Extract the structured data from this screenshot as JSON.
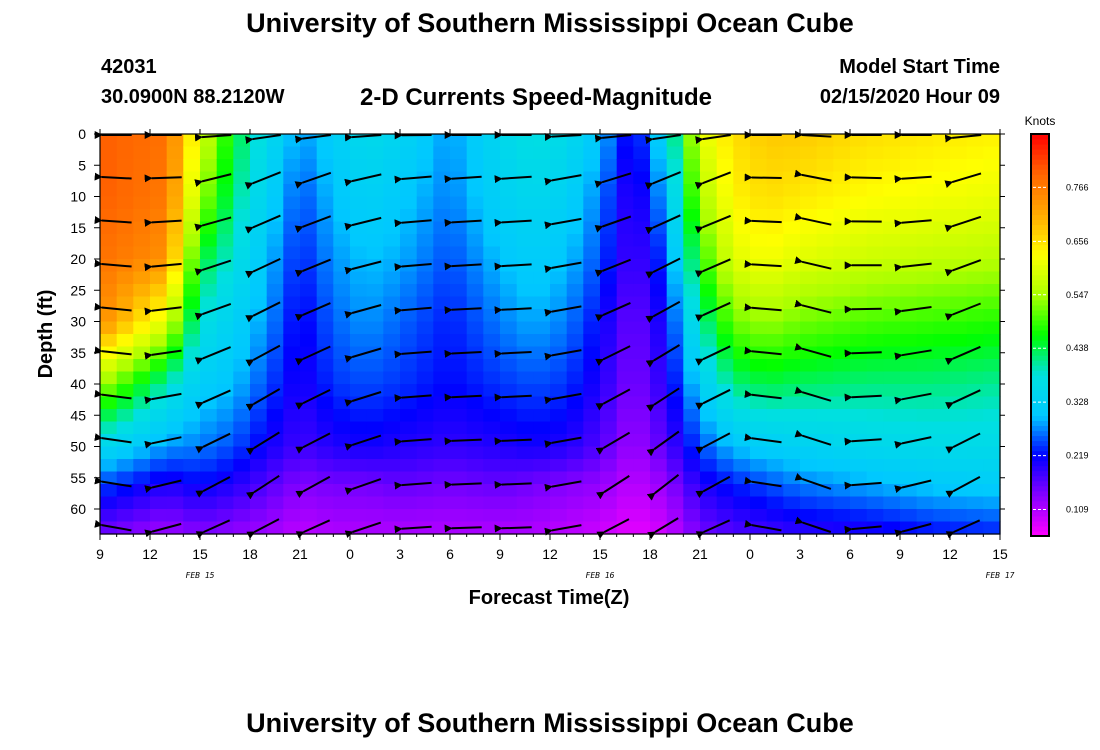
{
  "header": {
    "title": "University of Southern Mississippi Ocean Cube",
    "station_id": "42031",
    "location": "30.0900N 88.2120W",
    "plot_title": "2-D Currents Speed-Magnitude",
    "model_start_label": "Model Start Time",
    "model_start_time": "02/15/2020 Hour 09"
  },
  "footer": {
    "title": "University of Southern Mississippi Ocean Cube"
  },
  "chart_data": {
    "type": "heatmap",
    "title": "2-D Currents Speed-Magnitude",
    "xlabel": "Forecast Time(Z)",
    "ylabel": "Depth (ft)",
    "x_tick_labels": [
      "9",
      "12",
      "15",
      "18",
      "21",
      "0",
      "3",
      "6",
      "9",
      "12",
      "15",
      "18",
      "21",
      "0",
      "3",
      "6",
      "9",
      "12",
      "15"
    ],
    "date_labels": [
      {
        "label": "FEB 15",
        "x_hours": 15
      },
      {
        "label": "FEB 16",
        "x_hours": 39
      },
      {
        "label": "FEB 17",
        "x_hours": 63
      }
    ],
    "x_range_hours_from_start": [
      0,
      54
    ],
    "y_ticks": [
      0,
      5,
      10,
      15,
      20,
      25,
      30,
      35,
      40,
      45,
      50,
      55,
      60
    ],
    "ylim": [
      0,
      64
    ],
    "y_inverted": true,
    "colorbar": {
      "unit": "Knots",
      "ticks": [
        0.109,
        0.219,
        0.328,
        0.438,
        0.547,
        0.656,
        0.766
      ],
      "range": [
        0.055,
        0.875
      ],
      "colors": [
        "#ff00ff",
        "#8800ff",
        "#0000ff",
        "#00c8ff",
        "#00e0e0",
        "#00ff00",
        "#aaff00",
        "#ffff00",
        "#ffaa00",
        "#ff6600",
        "#ff0000"
      ]
    },
    "vector_times_hours": [
      1,
      4,
      7,
      10,
      13,
      16,
      19,
      22,
      25,
      28,
      31,
      34,
      37,
      40,
      43,
      46,
      49,
      52
    ],
    "vector_depths_ft": [
      0,
      7,
      14,
      21,
      28,
      35,
      42,
      49,
      56,
      63
    ],
    "speed_profile_times_hours": [
      0,
      4,
      6,
      8,
      10,
      12,
      14,
      16,
      18,
      21,
      24,
      26,
      28,
      30,
      32,
      34,
      36,
      38,
      40,
      42,
      46,
      50,
      54
    ],
    "speed_profile_depths_ft": [
      0,
      10,
      20,
      30,
      40,
      50,
      56,
      64
    ],
    "speed_knots": [
      [
        0.8,
        0.8,
        0.78,
        0.75,
        0.55,
        0.35,
        0.25,
        0.15
      ],
      [
        0.78,
        0.77,
        0.74,
        0.6,
        0.4,
        0.28,
        0.2,
        0.12
      ],
      [
        0.6,
        0.55,
        0.45,
        0.38,
        0.32,
        0.27,
        0.22,
        0.14
      ],
      [
        0.45,
        0.42,
        0.38,
        0.33,
        0.3,
        0.25,
        0.2,
        0.13
      ],
      [
        0.36,
        0.33,
        0.3,
        0.28,
        0.25,
        0.21,
        0.17,
        0.12
      ],
      [
        0.28,
        0.25,
        0.23,
        0.21,
        0.2,
        0.18,
        0.14,
        0.1
      ],
      [
        0.32,
        0.3,
        0.28,
        0.26,
        0.24,
        0.2,
        0.15,
        0.11
      ],
      [
        0.36,
        0.33,
        0.3,
        0.28,
        0.25,
        0.21,
        0.15,
        0.11
      ],
      [
        0.34,
        0.31,
        0.29,
        0.26,
        0.24,
        0.2,
        0.16,
        0.11
      ],
      [
        0.28,
        0.27,
        0.25,
        0.23,
        0.22,
        0.19,
        0.15,
        0.11
      ],
      [
        0.35,
        0.33,
        0.3,
        0.27,
        0.24,
        0.2,
        0.16,
        0.11
      ],
      [
        0.38,
        0.35,
        0.32,
        0.29,
        0.25,
        0.21,
        0.15,
        0.11
      ],
      [
        0.36,
        0.33,
        0.3,
        0.27,
        0.24,
        0.2,
        0.14,
        0.1
      ],
      [
        0.3,
        0.27,
        0.25,
        0.22,
        0.2,
        0.17,
        0.13,
        0.09
      ],
      [
        0.2,
        0.18,
        0.17,
        0.15,
        0.14,
        0.12,
        0.1,
        0.07
      ],
      [
        0.35,
        0.3,
        0.25,
        0.22,
        0.2,
        0.17,
        0.13,
        0.09
      ],
      [
        0.6,
        0.55,
        0.48,
        0.4,
        0.32,
        0.25,
        0.2,
        0.15
      ],
      [
        0.66,
        0.64,
        0.6,
        0.52,
        0.42,
        0.3,
        0.23,
        0.17
      ],
      [
        0.68,
        0.66,
        0.62,
        0.54,
        0.44,
        0.32,
        0.25,
        0.18
      ],
      [
        0.68,
        0.65,
        0.6,
        0.52,
        0.43,
        0.33,
        0.27,
        0.19
      ],
      [
        0.66,
        0.63,
        0.58,
        0.5,
        0.42,
        0.35,
        0.29,
        0.2
      ],
      [
        0.65,
        0.62,
        0.57,
        0.49,
        0.42,
        0.36,
        0.31,
        0.22
      ],
      [
        0.64,
        0.61,
        0.56,
        0.48,
        0.41,
        0.36,
        0.32,
        0.23
      ]
    ],
    "vector_direction_deg_cw_from_east": [
      [
        185,
        182,
        180,
        178,
        176,
        175,
        174,
        174,
        175,
        176,
        177,
        179,
        182,
        185,
        190,
        195,
        200,
        200,
        198,
        196,
        194,
        192,
        190,
        188,
        187,
        186,
        185,
        185,
        186,
        187,
        188,
        189,
        190,
        192,
        194,
        196,
        198,
        200,
        200,
        185,
        170,
        170,
        175,
        178,
        180,
        180,
        180,
        182,
        184,
        186,
        188,
        200,
        200,
        200
      ],
      [
        182,
        180,
        172,
        165,
        160,
        165,
        175,
        176,
        178,
        170,
        165,
        158,
        160,
        163,
        165,
        170,
        168,
        160,
        158,
        155,
        165,
        150,
        148,
        145,
        145,
        148,
        150,
        160,
        175,
        178,
        180,
        182,
        185,
        188,
        190,
        192,
        195,
        198,
        200,
        200,
        195,
        190,
        185,
        182,
        180,
        180,
        180,
        178,
        175,
        172,
        170,
        165,
        160,
        160
      ]
    ],
    "vector_angle_by_time_deg": [
      182,
      180,
      168,
      160,
      162,
      168,
      175,
      176,
      176,
      170,
      165,
      160,
      160,
      180,
      190,
      182,
      178,
      165
    ],
    "vector_bottom_angle_by_time_deg": [
      190,
      165,
      150,
      145,
      150,
      160,
      176,
      178,
      178,
      170,
      145,
      140,
      150,
      190,
      200,
      175,
      165,
      150
    ]
  }
}
